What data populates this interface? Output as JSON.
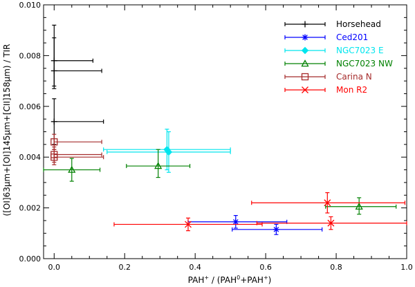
{
  "chart_data": {
    "type": "scatter",
    "title": "",
    "xlabel_main": "PAH",
    "xlabel_sup1": "+",
    "xlabel_mid": " / (PAH",
    "xlabel_sup2": "0",
    "xlabel_end": "+PAH",
    "xlabel_sup3": "+",
    "xlabel_close": ")",
    "ylabel": "([OI]63μm+[OI]145μm+[CII]158μm) / TIR",
    "xlim": [
      -0.03,
      1.0
    ],
    "ylim": [
      0.0,
      0.01
    ],
    "xticks": [
      0.0,
      0.2,
      0.4,
      0.6,
      0.8,
      1.0
    ],
    "xtick_labels": [
      "0.0",
      "0.2",
      "0.4",
      "0.6",
      "0.8",
      "1.0"
    ],
    "yticks": [
      0.0,
      0.002,
      0.004,
      0.006,
      0.008,
      0.01
    ],
    "ytick_labels": [
      "0.000",
      "0.002",
      "0.004",
      "0.006",
      "0.008",
      "0.010"
    ],
    "legend_position": "top-right",
    "series": [
      {
        "name": "Horsehead",
        "color": "#000000",
        "marker": "plus",
        "points": [
          {
            "x": 0.0,
            "y": 0.0078,
            "xerr": [
              0.0,
              0.11
            ],
            "yerr": [
              0.001,
              0.0014
            ]
          },
          {
            "x": 0.0,
            "y": 0.0074,
            "xerr": [
              0.0,
              0.135
            ],
            "yerr": [
              0.0007,
              0.0013
            ]
          },
          {
            "x": 0.0,
            "y": 0.0054,
            "xerr": [
              0.0,
              0.14
            ],
            "yerr": [
              0.0009,
              0.0009
            ]
          }
        ]
      },
      {
        "name": "Ced201",
        "color": "#0000ff",
        "marker": "asterisk",
        "points": [
          {
            "x": 0.515,
            "y": 0.00145,
            "xerr": [
              0.135,
              0.145
            ],
            "yerr": [
              0.00025,
              0.00025
            ]
          },
          {
            "x": 0.63,
            "y": 0.00115,
            "xerr": [
              0.125,
              0.13
            ],
            "yerr": [
              0.0002,
              0.0002
            ]
          }
        ]
      },
      {
        "name": "NGC7023 E",
        "color": "#00e5ee",
        "marker": "diamond",
        "points": [
          {
            "x": 0.32,
            "y": 0.0043,
            "xerr": [
              0.18,
              0.18
            ],
            "yerr": [
              0.0008,
              0.0008
            ]
          },
          {
            "x": 0.325,
            "y": 0.0042,
            "xerr": [
              0.175,
              0.175
            ],
            "yerr": [
              0.0008,
              0.0008
            ]
          }
        ]
      },
      {
        "name": "NGC7023 NW",
        "color": "#008000",
        "marker": "triangle",
        "points": [
          {
            "x": 0.05,
            "y": 0.0035,
            "xerr": [
              0.08,
              0.08
            ],
            "yerr": [
              0.00045,
              0.00045
            ]
          },
          {
            "x": 0.295,
            "y": 0.00365,
            "xerr": [
              0.09,
              0.09
            ],
            "yerr": [
              0.00045,
              0.00065
            ]
          },
          {
            "x": 0.865,
            "y": 0.00205,
            "xerr": [
              0.095,
              0.105
            ],
            "yerr": [
              0.0003,
              0.00035
            ]
          }
        ]
      },
      {
        "name": "Carina N",
        "color": "#a52a2a",
        "marker": "square",
        "points": [
          {
            "x": 0.0,
            "y": 0.0046,
            "xerr": [
              0.0,
              0.135
            ],
            "yerr": [
              0.0003,
              0.0003
            ]
          },
          {
            "x": 0.0,
            "y": 0.0041,
            "xerr": [
              0.0,
              0.135
            ],
            "yerr": [
              0.0003,
              0.0003
            ]
          },
          {
            "x": 0.0,
            "y": 0.004,
            "xerr": [
              0.0,
              0.14
            ],
            "yerr": [
              0.0003,
              0.0003
            ]
          }
        ]
      },
      {
        "name": "Mon R2",
        "color": "#ff0000",
        "marker": "cross",
        "points": [
          {
            "x": 0.38,
            "y": 0.00135,
            "xerr": [
              0.21,
              0.21
            ],
            "yerr": [
              0.00025,
              0.00025
            ]
          },
          {
            "x": 0.775,
            "y": 0.0022,
            "xerr": [
              0.215,
              0.22
            ],
            "yerr": [
              0.0004,
              0.0004
            ]
          },
          {
            "x": 0.785,
            "y": 0.0014,
            "xerr": [
              0.21,
              0.215
            ],
            "yerr": [
              0.00025,
              0.00025
            ]
          }
        ]
      }
    ]
  }
}
